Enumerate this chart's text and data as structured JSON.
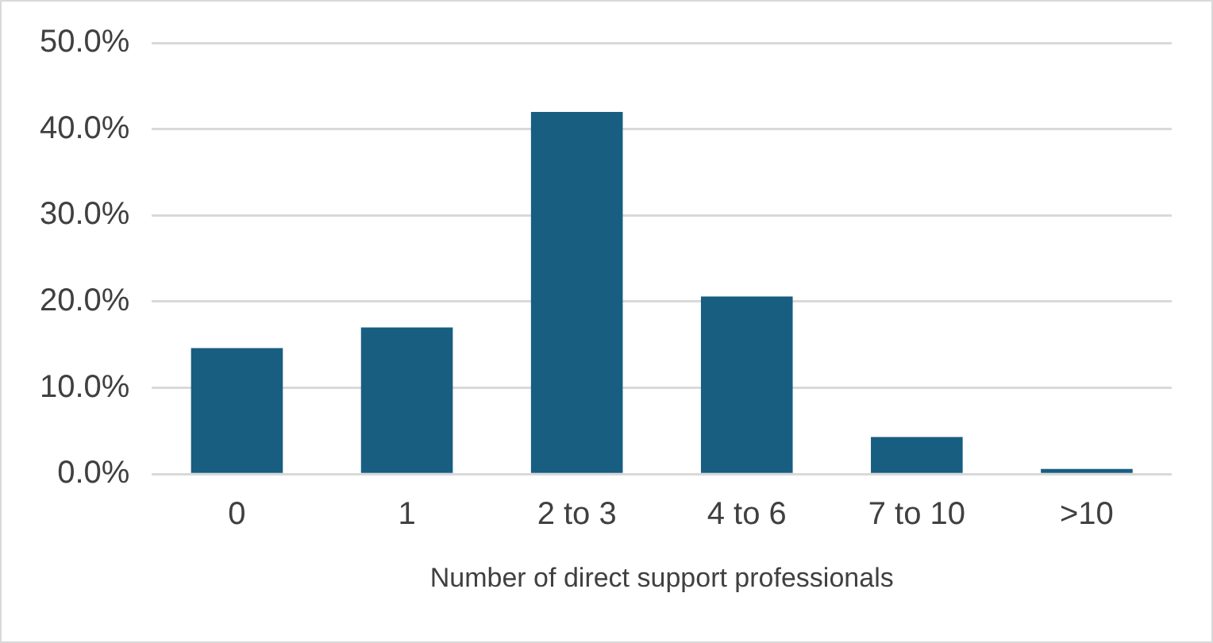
{
  "chart_data": {
    "type": "bar",
    "xlabel": "Number of direct support professionals",
    "categories": [
      "0",
      "1",
      "2 to 3",
      "4 to 6",
      "7 to 10",
      ">10"
    ],
    "values": [
      14.6,
      17.0,
      42.0,
      20.6,
      4.3,
      0.6
    ],
    "color": "#175e81",
    "ylim": [
      0,
      50
    ],
    "yticks": [
      {
        "value": 0,
        "label": "0.0%"
      },
      {
        "value": 10,
        "label": "10.0%"
      },
      {
        "value": 20,
        "label": "20.0%"
      },
      {
        "value": 30,
        "label": "30.0%"
      },
      {
        "value": 40,
        "label": "40.0%"
      },
      {
        "value": 50,
        "label": "50.0%"
      }
    ],
    "grid": "y",
    "legend": false
  }
}
